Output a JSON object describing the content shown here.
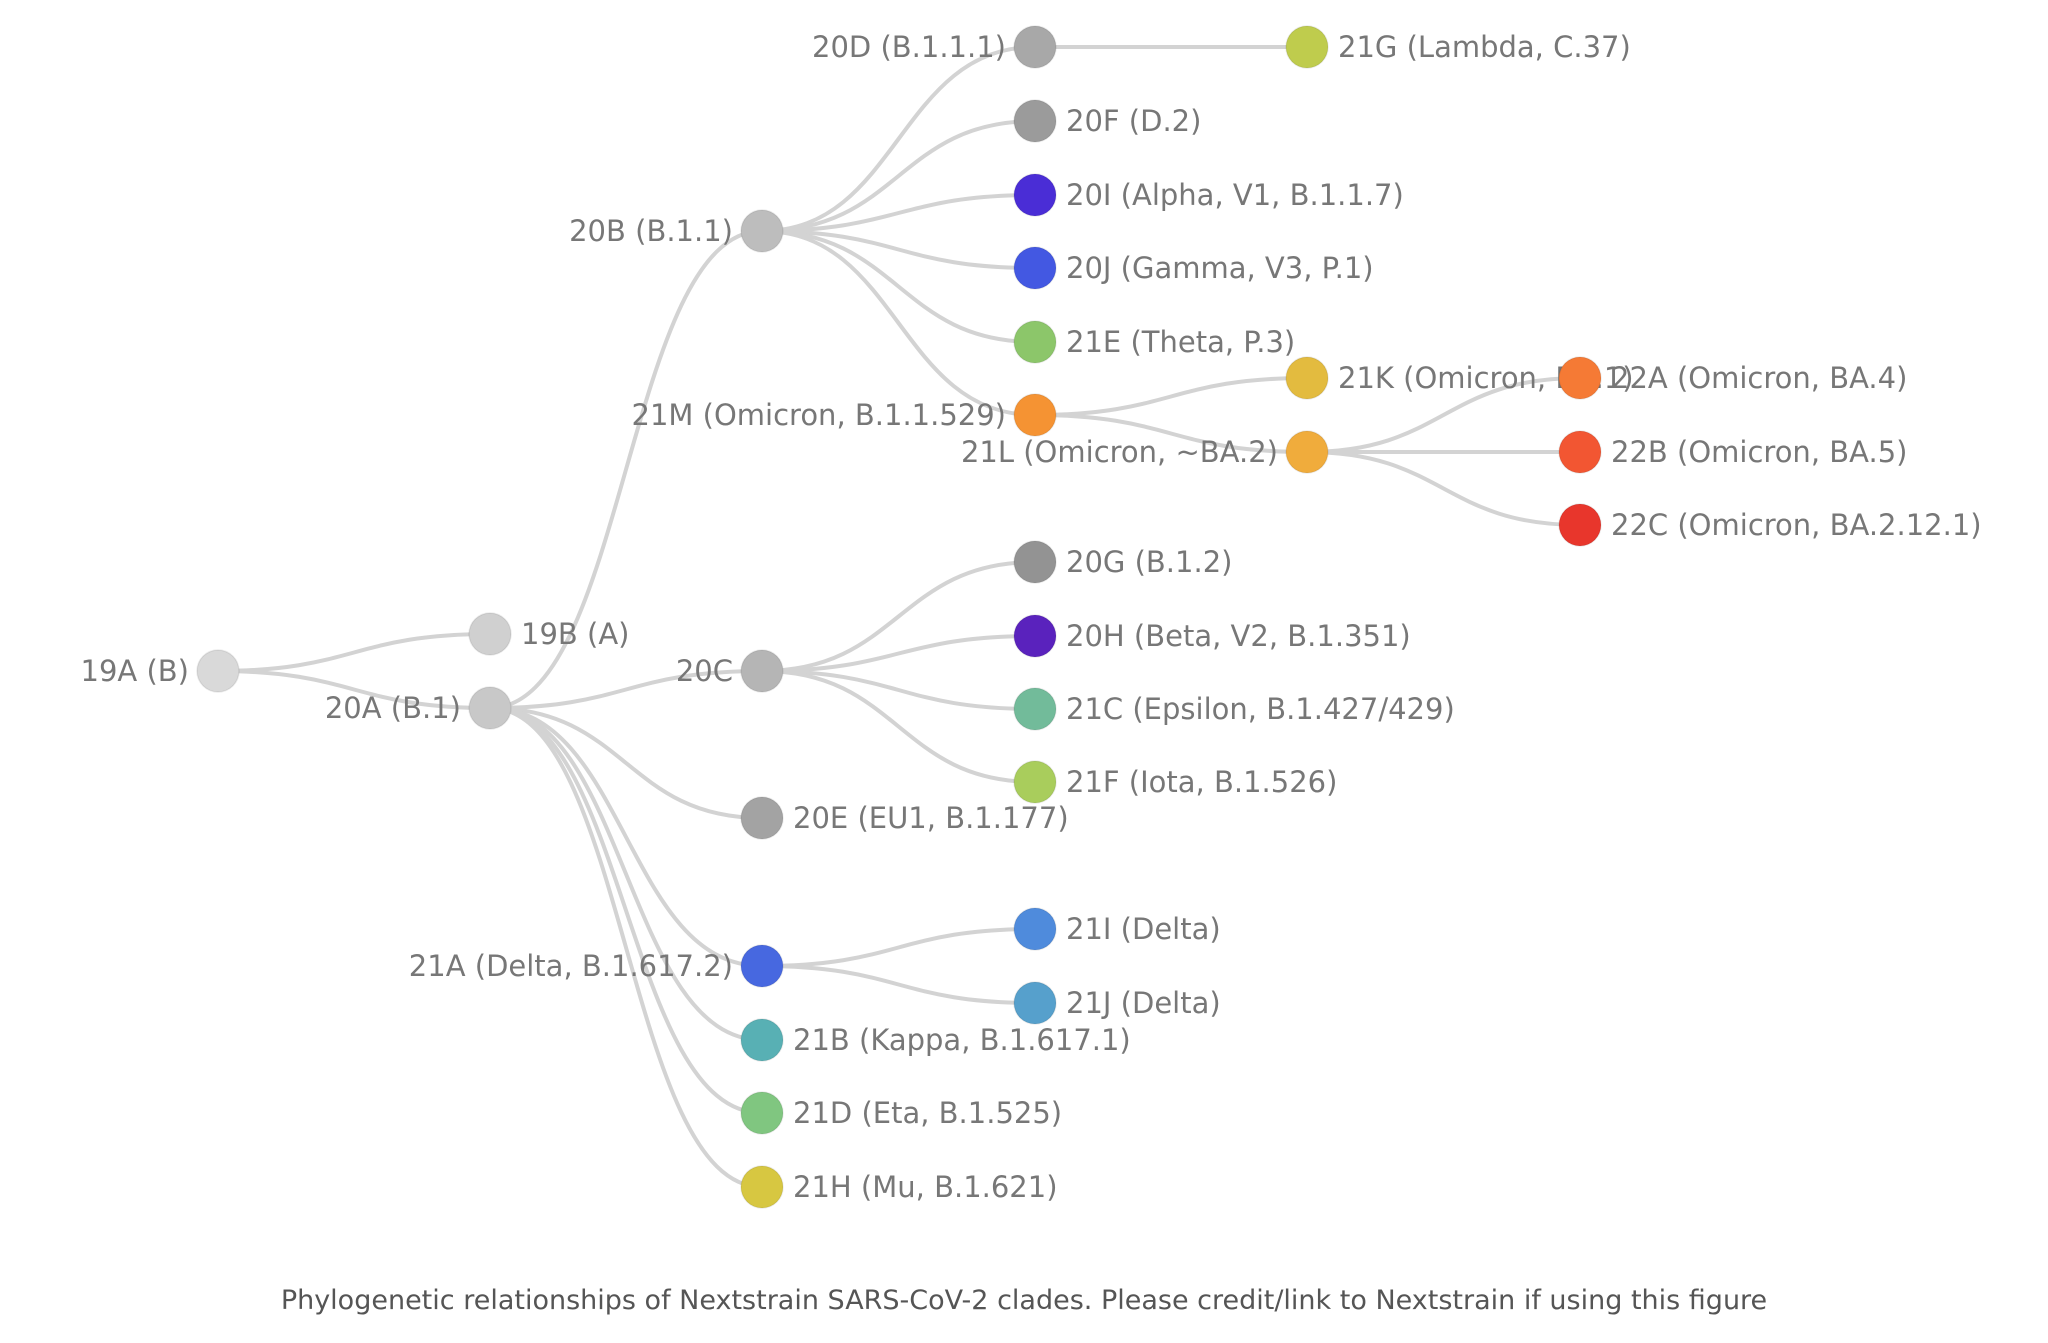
{
  "caption": "Phylogenetic relationships of Nextstrain SARS-CoV-2 clades. Please credit/link to Nextstrain if using this figure",
  "clades": [
    {
      "id": "19A",
      "label": "19A (B)",
      "parent": null,
      "color": "#d9d9d9"
    },
    {
      "id": "19B",
      "label": "19B (A)",
      "parent": "19A",
      "color": "#d0d0d0"
    },
    {
      "id": "20A",
      "label": "20A (B.1)",
      "parent": "19A",
      "color": "#c8c8c8"
    },
    {
      "id": "20B",
      "label": "20B (B.1.1)",
      "parent": "20A",
      "color": "#bdbdbd"
    },
    {
      "id": "20C",
      "label": "20C",
      "parent": "20A",
      "color": "#b5b5b5"
    },
    {
      "id": "20E",
      "label": "20E (EU1, B.1.177)",
      "parent": "20A",
      "color": "#a3a3a3"
    },
    {
      "id": "21A",
      "label": "21A (Delta, B.1.617.2)",
      "parent": "20A",
      "color": "#4768e0"
    },
    {
      "id": "21B",
      "label": "21B (Kappa, B.1.617.1)",
      "parent": "20A",
      "color": "#58b0b4"
    },
    {
      "id": "21D",
      "label": "21D (Eta, B.1.525)",
      "parent": "20A",
      "color": "#80c680"
    },
    {
      "id": "21H",
      "label": "21H (Mu, B.1.621)",
      "parent": "20A",
      "color": "#d7c741"
    },
    {
      "id": "20D",
      "label": "20D (B.1.1.1)",
      "parent": "20B",
      "color": "#a8a8a8"
    },
    {
      "id": "20F",
      "label": "20F (D.2)",
      "parent": "20B",
      "color": "#9b9b9b"
    },
    {
      "id": "20I",
      "label": "20I (Alpha, V1, B.1.1.7)",
      "parent": "20B",
      "color": "#4a2dd6"
    },
    {
      "id": "20J",
      "label": "20J (Gamma, V3, P.1)",
      "parent": "20B",
      "color": "#4358e2"
    },
    {
      "id": "21E",
      "label": "21E (Theta, P.3)",
      "parent": "20B",
      "color": "#8cc66a"
    },
    {
      "id": "21M",
      "label": "21M (Omicron, B.1.1.529)",
      "parent": "20B",
      "color": "#f59333"
    },
    {
      "id": "21G",
      "label": "21G (Lambda, C.37)",
      "parent": "20D",
      "color": "#bfcc4d"
    },
    {
      "id": "21K",
      "label": "21K (Omicron, BA.1)",
      "parent": "21M",
      "color": "#e3bb3f"
    },
    {
      "id": "21L",
      "label": "21L (Omicron, ~BA.2)",
      "parent": "21M",
      "color": "#f0ac3c"
    },
    {
      "id": "22A",
      "label": "22A (Omicron, BA.4)",
      "parent": "21L",
      "color": "#f57a35"
    },
    {
      "id": "22B",
      "label": "22B (Omicron, BA.5)",
      "parent": "21L",
      "color": "#f25632"
    },
    {
      "id": "22C",
      "label": "22C (Omicron, BA.2.12.1)",
      "parent": "21L",
      "color": "#e8362c"
    },
    {
      "id": "20G",
      "label": "20G (B.1.2)",
      "parent": "20C",
      "color": "#939393"
    },
    {
      "id": "20H",
      "label": "20H (Beta, V2, B.1.351)",
      "parent": "20C",
      "color": "#5a22bd"
    },
    {
      "id": "21C",
      "label": "21C (Epsilon, B.1.427/429)",
      "parent": "20C",
      "color": "#72bb9a"
    },
    {
      "id": "21F",
      "label": "21F (Iota, B.1.526)",
      "parent": "20C",
      "color": "#a9cd5c"
    },
    {
      "id": "21I",
      "label": "21I (Delta)",
      "parent": "21A",
      "color": "#4f8bdc"
    },
    {
      "id": "21J",
      "label": "21J (Delta)",
      "parent": "21A",
      "color": "#56a0cc"
    }
  ]
}
